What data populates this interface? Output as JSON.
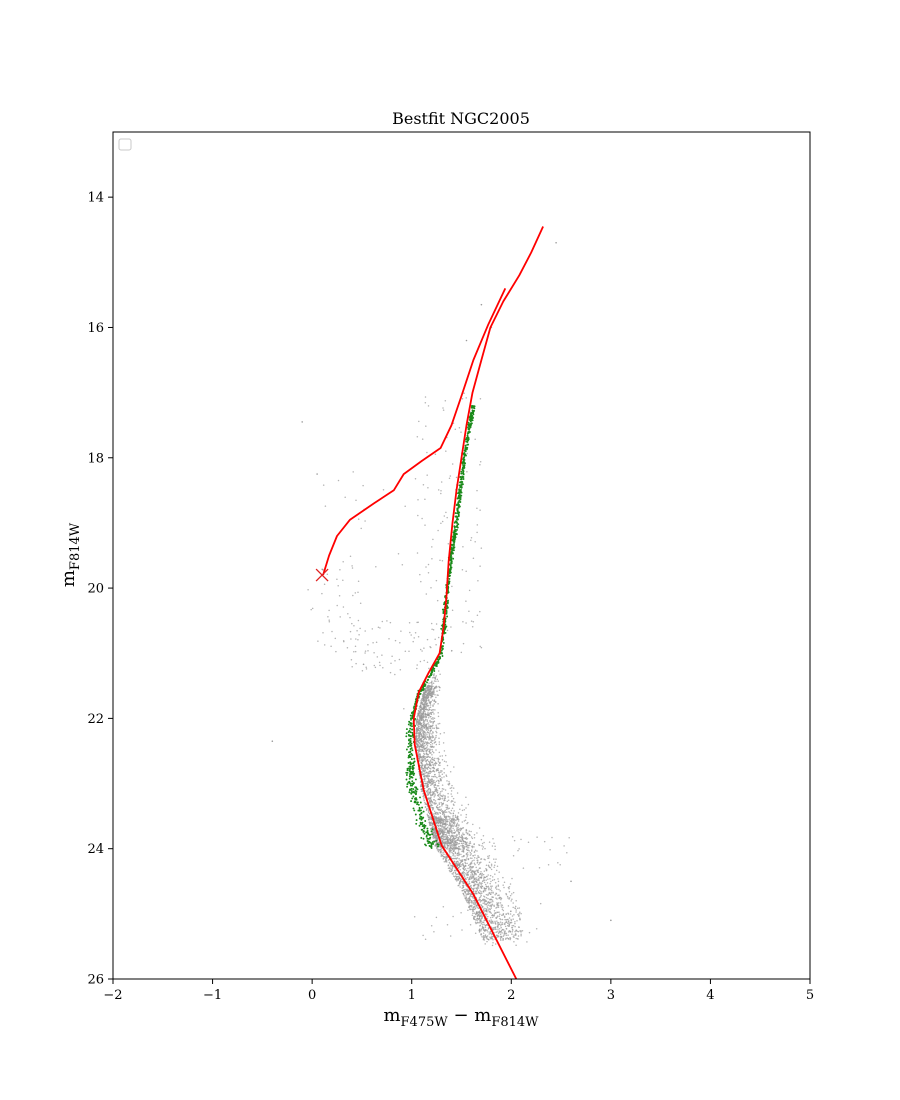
{
  "chart_data": {
    "type": "scatter",
    "title": "Bestfit NGC2005",
    "xlabel": {
      "main": "m",
      "sub1": "F475W",
      "mid": " − m",
      "sub2": "F814W"
    },
    "ylabel": {
      "main": "m",
      "sub": "F814W"
    },
    "xlim": [
      -2,
      5
    ],
    "ylim": [
      26,
      13
    ],
    "y_inverted": true,
    "x_ticks": [
      -2,
      -1,
      0,
      1,
      2,
      3,
      4,
      5
    ],
    "x_tick_labels": [
      "−2",
      "−1",
      "0",
      "1",
      "2",
      "3",
      "4",
      "5"
    ],
    "y_ticks": [
      14,
      16,
      18,
      20,
      22,
      24,
      26
    ],
    "y_tick_labels": [
      "14",
      "16",
      "18",
      "20",
      "22",
      "24",
      "26"
    ],
    "grid": false,
    "legend": {
      "placement": "top-left",
      "entries": []
    },
    "colors": {
      "stars_all": "#9a9a9a",
      "stars_members": "#1a8a1a",
      "isochrone": "#ff0000",
      "marker": "#e02020"
    },
    "series": [
      {
        "kind": "scatter-density",
        "role": "all-stars",
        "color": "#9a9a9a",
        "regions": [
          {
            "x": [
              0.85,
              1.75
            ],
            "y": [
              21.5,
              24.0
            ],
            "count": 1800
          },
          {
            "x": [
              0.95,
              2.1
            ],
            "y": [
              23.5,
              25.4
            ],
            "count": 1500
          },
          {
            "x": [
              1.4,
              2.6
            ],
            "y": [
              23.8,
              25.5
            ],
            "count": 260
          },
          {
            "x": [
              0.35,
              1.3
            ],
            "y": [
              20.5,
              22.0
            ],
            "count": 160
          },
          {
            "x": [
              -0.1,
              0.5
            ],
            "y": [
              19.6,
              21.0
            ],
            "count": 40
          },
          {
            "x": [
              1.05,
              1.7
            ],
            "y": [
              17.0,
              21.0
            ],
            "count": 120
          },
          {
            "x": [
              0.1,
              1.2
            ],
            "y": [
              18.2,
              20.0
            ],
            "count": 25
          }
        ],
        "outliers": [
          [
            -0.4,
            22.35
          ],
          [
            -0.1,
            17.45
          ],
          [
            0.05,
            18.25
          ],
          [
            1.55,
            16.2
          ],
          [
            1.8,
            16.0
          ],
          [
            2.45,
            14.7
          ],
          [
            3.0,
            25.1
          ],
          [
            2.6,
            24.5
          ],
          [
            1.7,
            15.65
          ]
        ]
      },
      {
        "kind": "scatter-along-track",
        "role": "member-stars",
        "color": "#1a8a1a",
        "track": [
          [
            1.62,
            17.2
          ],
          [
            1.58,
            17.5
          ],
          [
            1.53,
            18.0
          ],
          [
            1.49,
            18.5
          ],
          [
            1.45,
            19.0
          ],
          [
            1.4,
            19.5
          ],
          [
            1.36,
            20.0
          ],
          [
            1.33,
            20.5
          ],
          [
            1.3,
            21.0
          ],
          [
            1.2,
            21.3
          ],
          [
            1.08,
            21.6
          ],
          [
            1.0,
            22.0
          ],
          [
            0.98,
            22.5
          ],
          [
            1.0,
            23.0
          ],
          [
            1.08,
            23.5
          ],
          [
            1.22,
            24.0
          ]
        ],
        "count": 900
      },
      {
        "kind": "line",
        "name": "",
        "color": "#ff0000",
        "points": [
          [
            2.05,
            26.0
          ],
          [
            1.62,
            24.7
          ],
          [
            1.3,
            23.95
          ],
          [
            1.12,
            23.1
          ],
          [
            1.03,
            22.4
          ],
          [
            1.02,
            22.0
          ],
          [
            1.07,
            21.6
          ],
          [
            1.17,
            21.3
          ],
          [
            1.28,
            21.0
          ],
          [
            1.32,
            20.6
          ],
          [
            1.35,
            20.1
          ],
          [
            1.37,
            19.6
          ],
          [
            1.41,
            19.0
          ],
          [
            1.45,
            18.5
          ],
          [
            1.5,
            18.0
          ],
          [
            1.55,
            17.5
          ],
          [
            1.61,
            17.0
          ],
          [
            1.7,
            16.5
          ],
          [
            1.79,
            16.0
          ],
          [
            1.92,
            15.6
          ],
          [
            2.08,
            15.2
          ],
          [
            2.2,
            14.85
          ],
          [
            2.32,
            14.45
          ]
        ]
      },
      {
        "kind": "line",
        "name": "",
        "color": "#ff0000",
        "points": [
          [
            1.94,
            15.4
          ],
          [
            1.77,
            15.95
          ],
          [
            1.62,
            16.5
          ],
          [
            1.5,
            17.05
          ],
          [
            1.4,
            17.5
          ],
          [
            1.29,
            17.85
          ],
          [
            1.1,
            18.05
          ],
          [
            0.92,
            18.25
          ],
          [
            0.82,
            18.5
          ],
          [
            0.62,
            18.7
          ],
          [
            0.38,
            18.95
          ],
          [
            0.25,
            19.2
          ],
          [
            0.17,
            19.5
          ],
          [
            0.11,
            19.8
          ]
        ]
      }
    ],
    "annotations": [
      {
        "marker": "x",
        "x": 0.1,
        "y": 19.8,
        "color": "#e02020"
      }
    ]
  }
}
